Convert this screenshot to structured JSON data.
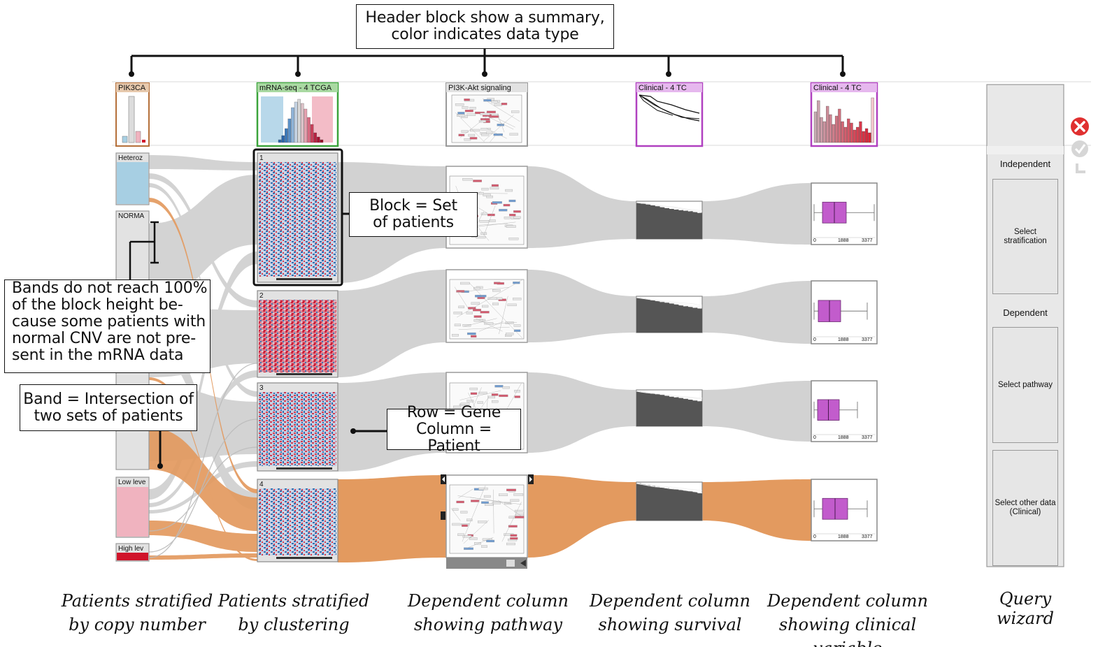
{
  "callouts": {
    "header": [
      "Header block show a summary,",
      "color indicates data type"
    ],
    "block": [
      "Block = Set",
      "of patients"
    ],
    "bands": [
      "Bands do not reach 100%",
      "of the block height be-",
      "cause some patients with",
      "normal CNV are not pre-",
      "sent in the mRNA data"
    ],
    "band": [
      "Band = Intersection of",
      "two sets of patients"
    ],
    "row": [
      "Row = Gene",
      "Column = Patient"
    ]
  },
  "headers": {
    "pik3ca": "PIK3CA",
    "mrna": "mRNA-seq - 4 TCGA",
    "pathway": "PI3K-Akt signaling",
    "survival": "Clinical - 4 TC",
    "clinical": "Clinical - 4 TC"
  },
  "cnv_blocks": [
    "Heteroz",
    "NORMA",
    "Low leve",
    "High lev"
  ],
  "cluster_blocks": [
    "1",
    "2",
    "3",
    "4"
  ],
  "boxplot_ticks": [
    "0",
    "1888",
    "3377"
  ],
  "wizard": {
    "independent": "Independent",
    "select_stratification": "Select stratification",
    "dependent": "Dependent",
    "select_pathway": "Select pathway",
    "select_other": "Select other data (Clinical)"
  },
  "captions": {
    "cnv": [
      "Patients stratified",
      "by copy number"
    ],
    "cluster": [
      "Patients stratified",
      "by clustering"
    ],
    "pathway": [
      "Dependent column",
      "showing pathway"
    ],
    "survival": [
      "Dependent column",
      "showing survival"
    ],
    "clinical": [
      "Dependent column",
      "showing clinical variable"
    ],
    "wizard": [
      "Query",
      "wizard"
    ]
  },
  "colors": {
    "cnv_header": "#b5703a",
    "mrna_header": "#3aa33a",
    "pathway_header": "#9a9a9a",
    "clinical_header": "#b040c0",
    "band_gray": "#cfcfcf",
    "band_orange": "#e39a5f",
    "heteroz": "#a7cfe3",
    "low_level": "#f0b3bf",
    "high_level": "#d0142a",
    "box_purple": "#c25ccc",
    "close_red": "#e03030"
  }
}
